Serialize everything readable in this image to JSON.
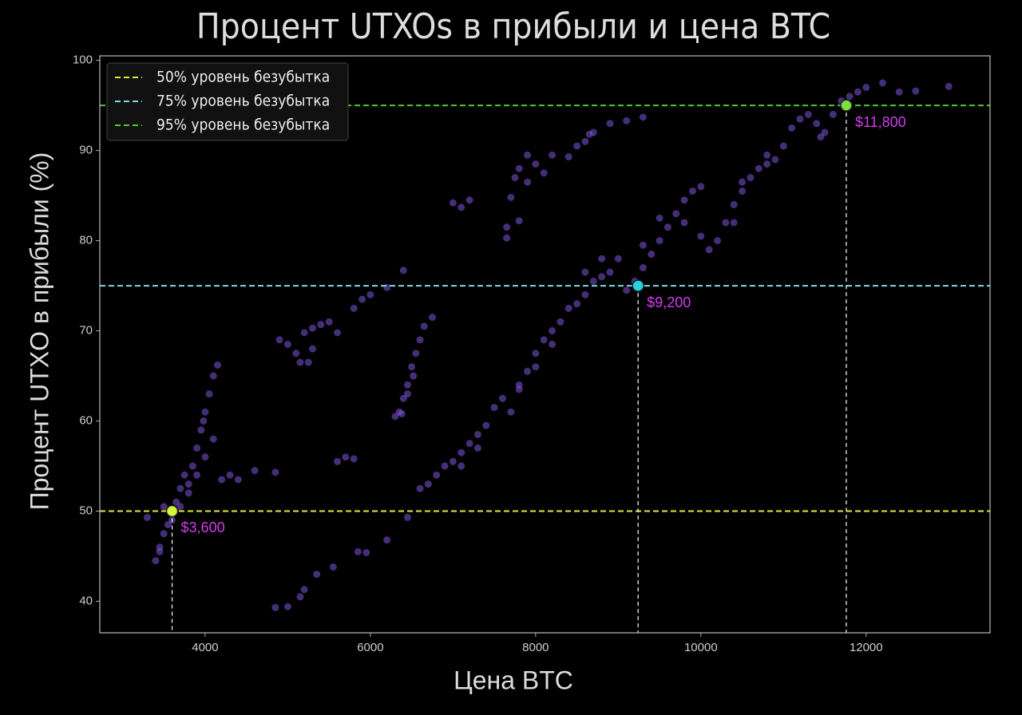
{
  "chart_data": {
    "type": "scatter",
    "title": "Процент UTXOs в прибыли и цена BTC",
    "xlabel": "Цена BTC",
    "ylabel": "Процент UTXO в прибыли (%)",
    "color": "#8a5cf0",
    "x": [
      3300,
      3400,
      3450,
      3500,
      3550,
      3600,
      3650,
      3700,
      3750,
      3800,
      3850,
      3900,
      3950,
      3980,
      4000,
      4050,
      4100,
      4150,
      3700,
      3800,
      3900,
      4000,
      4100,
      4200,
      4300,
      4400,
      4600,
      3500,
      3450,
      4900,
      5000,
      5100,
      5200,
      5300,
      5400,
      5500,
      5150,
      5250,
      5300,
      5600,
      5800,
      5900,
      6000,
      6200,
      6400,
      4850,
      5600,
      5700,
      5800,
      4850,
      5000,
      5150,
      5200,
      5350,
      5550,
      5850,
      5950,
      6200,
      6450,
      6300,
      6350,
      6400,
      6450,
      6500,
      6550,
      6600,
      6650,
      6750,
      6380,
      6450,
      6520,
      6600,
      6700,
      6800,
      6900,
      7000,
      7100,
      7200,
      7300,
      7400,
      7500,
      7600,
      7700,
      7800,
      7900,
      8000,
      8100,
      8200,
      8300,
      8400,
      8500,
      8600,
      8700,
      8800,
      8900,
      9000,
      9100,
      9200,
      9300,
      9400,
      9500,
      9600,
      9700,
      9800,
      9900,
      10000,
      8600,
      8800,
      7300,
      7100,
      7800,
      8000,
      8200,
      9300,
      9500,
      9800,
      10000,
      10100,
      10200,
      10300,
      10400,
      10500,
      10600,
      10700,
      10800,
      10900,
      11000,
      11100,
      11200,
      11300,
      11400,
      11450,
      11500,
      11600,
      11700,
      11800,
      11900,
      12000,
      12200,
      12400,
      12600,
      13000,
      10400,
      10800,
      10500,
      7000,
      7100,
      7200,
      7650,
      7650,
      7800,
      7700,
      7750,
      7800,
      7900,
      8000,
      8100,
      8200,
      8400,
      8500,
      8600,
      8700,
      8900,
      9100,
      9300,
      7900,
      8650
    ],
    "values": [
      49.3,
      44.5,
      46,
      47.5,
      48.5,
      49,
      51,
      52.5,
      54,
      53,
      55,
      57,
      59,
      60,
      61,
      63,
      65,
      66.2,
      50.5,
      52,
      54,
      56,
      58,
      53.5,
      54,
      53.5,
      54.5,
      50.5,
      45.5,
      69,
      68.5,
      67.5,
      69.8,
      70.3,
      70.7,
      71,
      66.5,
      66.5,
      68,
      69.8,
      72.5,
      73.5,
      74,
      74.8,
      76.7,
      54.3,
      55.5,
      56,
      55.8,
      39.3,
      39.4,
      40.5,
      41.3,
      43,
      43.8,
      45.5,
      45.4,
      46.8,
      49.3,
      60.5,
      61,
      62.5,
      64,
      66,
      67.5,
      69,
      70.5,
      71.5,
      60.8,
      63,
      65,
      52.5,
      53,
      54,
      55,
      55.5,
      56.5,
      57.5,
      58.5,
      59.5,
      61.5,
      62.5,
      61,
      63.5,
      65.5,
      67.5,
      69,
      70,
      71,
      72.5,
      73,
      74,
      75.5,
      76,
      76.5,
      78,
      74.5,
      75.5,
      77,
      78.5,
      80,
      81.5,
      83,
      84.5,
      85.5,
      86,
      76.5,
      78,
      57,
      55,
      64,
      66,
      68.5,
      79.5,
      82.5,
      82,
      80.5,
      79,
      80,
      82,
      84,
      85.5,
      87,
      88,
      88.5,
      89,
      90.5,
      92.5,
      93.5,
      94,
      93,
      91.5,
      92,
      94,
      95.5,
      96,
      96.5,
      97,
      97.5,
      96.5,
      96.6,
      97.1,
      82,
      89.5,
      86.5,
      84.2,
      83.7,
      84.5,
      80.3,
      81.5,
      82.2,
      84.8,
      87,
      88,
      86.5,
      88.5,
      87.5,
      89.5,
      89.3,
      90.5,
      91,
      92,
      93,
      93.3,
      93.7,
      89.5,
      91.8
    ],
    "xlim": [
      2725,
      13500
    ],
    "ylim": [
      36.5,
      100.5
    ],
    "xticks": [
      4000,
      6000,
      8000,
      10000,
      12000
    ],
    "yticks": [
      40,
      50,
      60,
      70,
      80,
      90,
      100
    ],
    "legend": "upper left",
    "lines": [
      {
        "value": 50,
        "label": "50% уровень безубытка",
        "color": "#e6e63c"
      },
      {
        "value": 75,
        "label": "75% уровень безубытка",
        "color": "#7fd8e6"
      },
      {
        "value": 95,
        "label": "95% уровень безубытка",
        "color": "#4ecb2c"
      }
    ],
    "annotations": [
      {
        "x": 3600,
        "y": 50,
        "label": "$3,600",
        "color": "#d4f53c"
      },
      {
        "x": 9240,
        "y": 75,
        "label": "$9,200",
        "color": "#22d3e0"
      },
      {
        "x": 11760,
        "y": 95,
        "label": "$11,800",
        "color": "#7ae03c"
      }
    ]
  }
}
